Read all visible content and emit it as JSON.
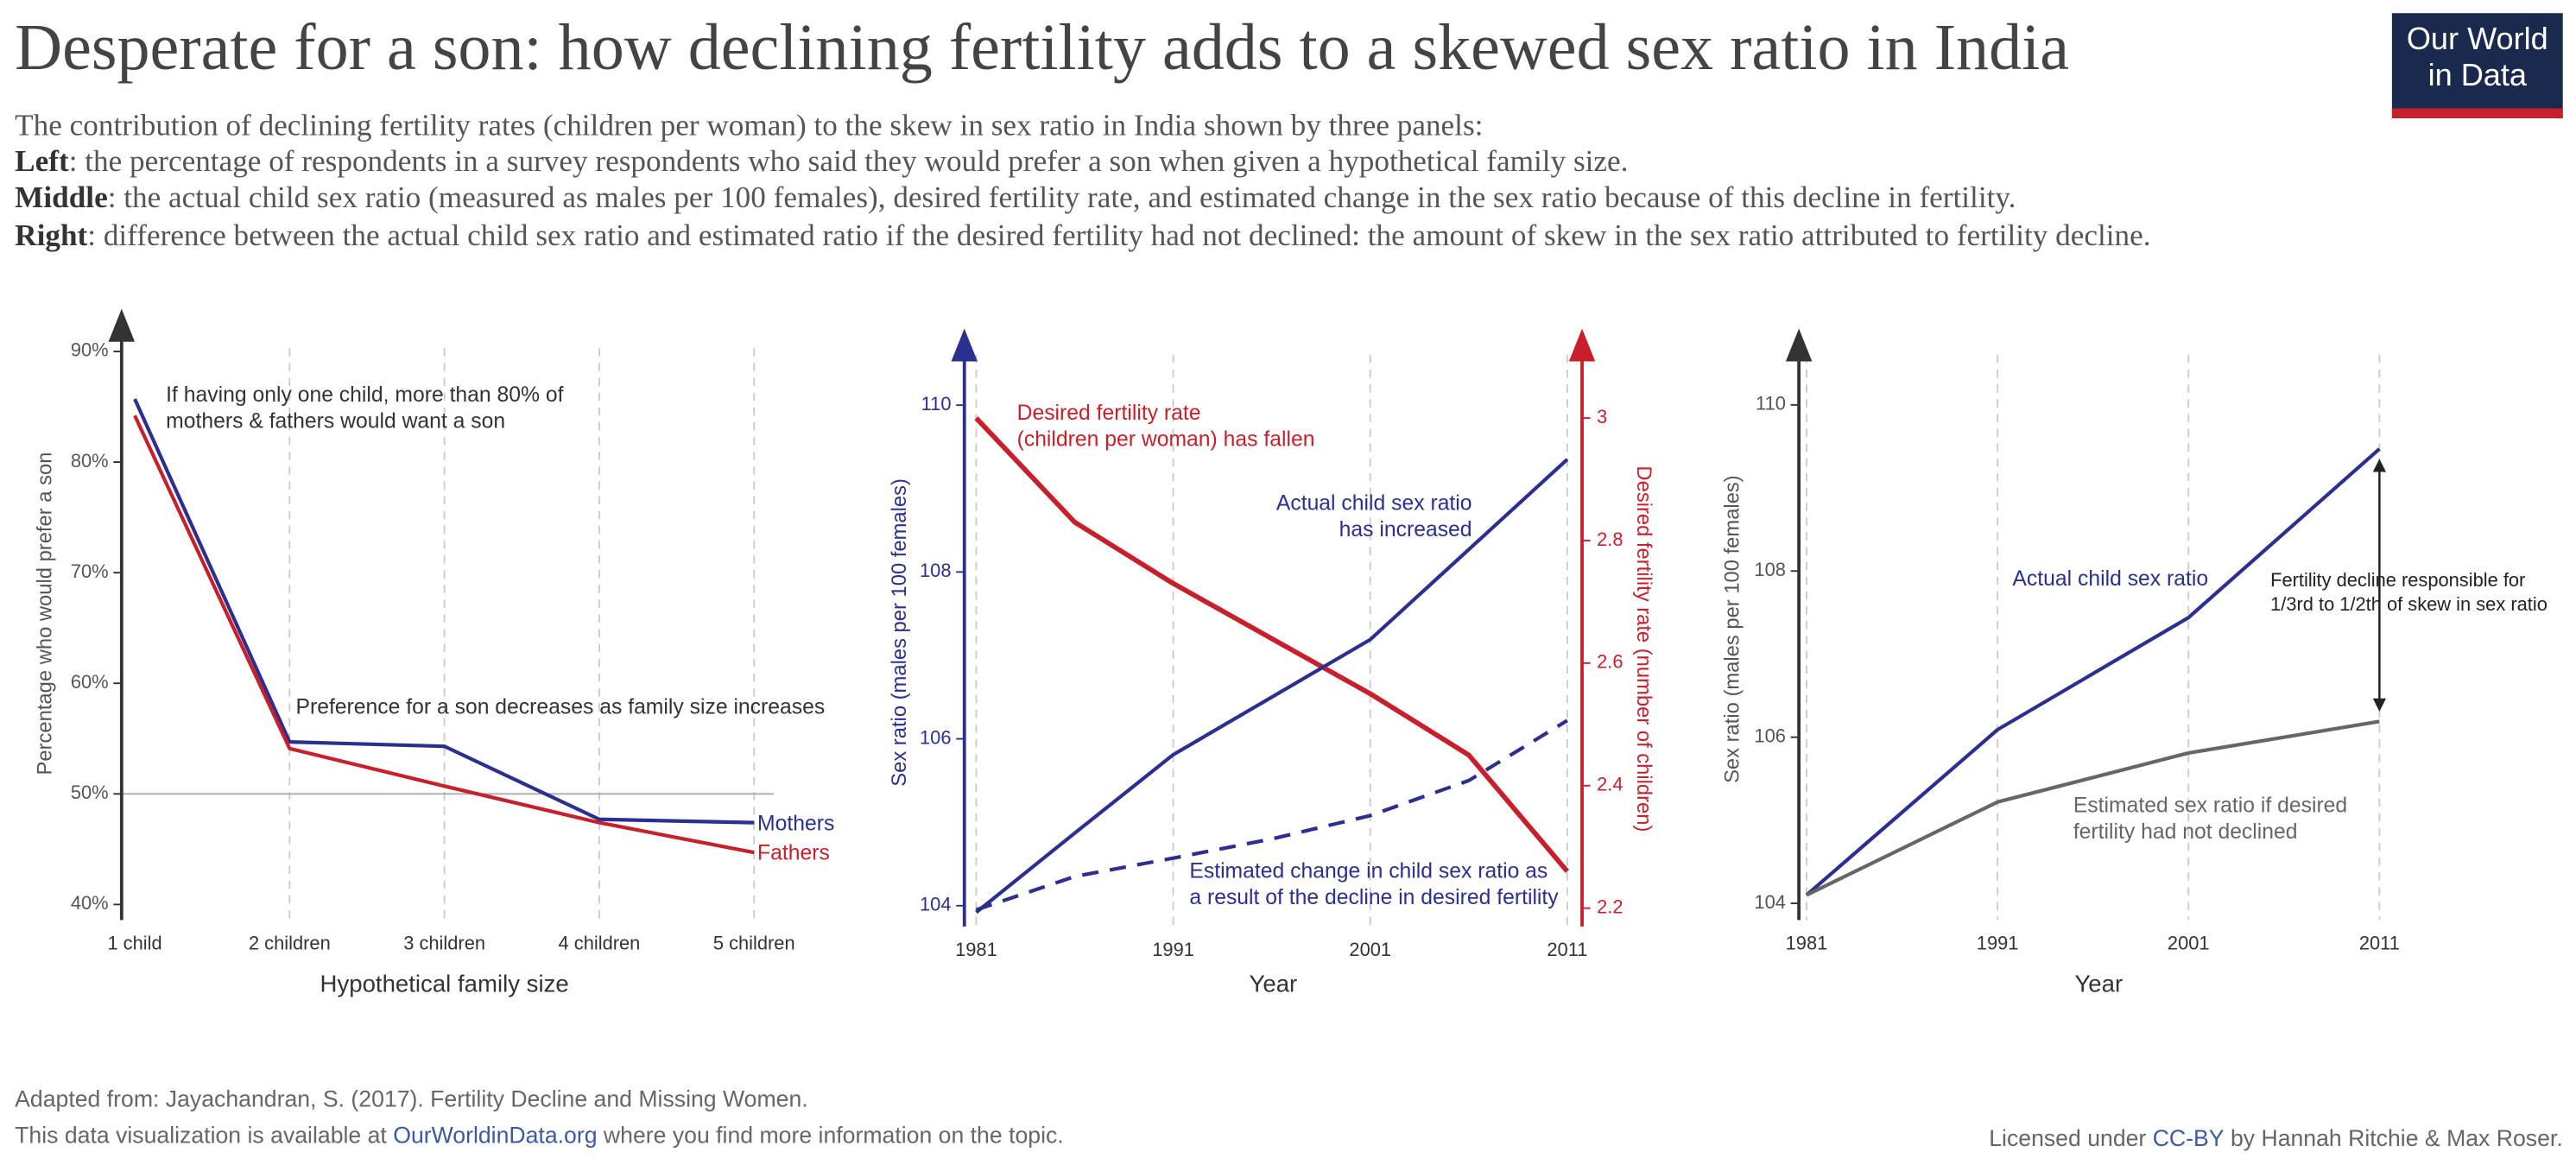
{
  "header": {
    "title": "Desperate for a son: how declining fertility adds to a skewed sex ratio in India",
    "subtitle": [
      {
        "text": "The contribution of declining fertility rates (children per woman) to the skew in sex ratio in India shown by three panels:"
      },
      {
        "label": "Left",
        "text": ": the percentage of respondents in a survey respondents who said they would prefer a son when given a hypothetical family size."
      },
      {
        "label": "Middle",
        "text": ": the actual child sex ratio (measured as males per 100 females), desired fertility rate, and estimated change in the sex ratio because of this decline in fertility."
      },
      {
        "label": "Right",
        "text": ": difference between the actual child sex ratio and estimated ratio if the desired fertility had not declined: the amount of skew in the sex ratio attributed to fertility decline."
      }
    ],
    "logo": [
      "Our World",
      "in Data"
    ]
  },
  "chart_data": [
    {
      "type": "line",
      "x_label": "Hypothetical family size",
      "y_label": "Percentage who would prefer a son",
      "categories": [
        "1 child",
        "2 children",
        "3 children",
        "4 children",
        "5 children"
      ],
      "series": [
        {
          "name": "Mothers",
          "color": "#2b2f8f",
          "values": [
            85.7,
            54.7,
            54.3,
            47.7,
            47.4
          ]
        },
        {
          "name": "Fathers",
          "color": "#c8202b",
          "values": [
            84.2,
            54.1,
            50.7,
            47.4,
            44.7
          ]
        }
      ],
      "ylim": [
        38.6,
        94
      ],
      "yticks": [
        {
          "value": 40,
          "label": "40%"
        },
        {
          "value": 50,
          "label": "50%"
        },
        {
          "value": 60,
          "label": "60%"
        },
        {
          "value": 70,
          "label": "70%"
        },
        {
          "value": 80,
          "label": "80%"
        },
        {
          "value": 90,
          "label": "90%"
        }
      ],
      "reference_line": 50,
      "y_axis_color": "#333333",
      "xgrid": true,
      "annotations": [
        {
          "text": [
            "If having only one child, more than 80% of",
            "mothers & fathers would want a son"
          ],
          "color": "#333333"
        },
        {
          "text": [
            "Preference for a son decreases as family size increases"
          ],
          "color": "#333333"
        }
      ]
    },
    {
      "type": "line",
      "x_label": "Year",
      "y_label": "Sex ratio (males per 100 females)",
      "y2_label": "Desired fertility rate (number of children)",
      "x": [
        1981,
        1986,
        1991,
        1996,
        2001,
        2006,
        2011
      ],
      "series": [
        {
          "name": [
            "Desired fertility rate",
            "(children per woman) has fallen"
          ],
          "color": "#c8202b",
          "axis": "y2",
          "values": [
            3.0,
            2.83,
            2.73,
            2.64,
            2.55,
            2.45,
            2.26
          ]
        },
        {
          "name": [
            "Actual child sex ratio",
            "has increased"
          ],
          "color": "#2b2f8f",
          "values": [
            103.92,
            104.87,
            105.81,
            106.5,
            107.19,
            108.27,
            109.35
          ]
        },
        {
          "name": [
            "Estimated change in child sex ratio as",
            "a result of the decline in desired fertility"
          ],
          "color": "#2b2f8f",
          "dashed": true,
          "values": [
            103.95,
            104.35,
            104.57,
            104.8,
            105.08,
            105.5,
            106.22
          ]
        }
      ],
      "xlim": [
        1980.4,
        2011.75
      ],
      "xticks": [
        1981,
        1991,
        2001,
        2011
      ],
      "ylim": [
        103.75,
        110.8
      ],
      "yticks": [
        104,
        106,
        108,
        110
      ],
      "y2lim": [
        2.17,
        3.13
      ],
      "y2ticks": [
        2.2,
        2.4,
        2.6,
        2.8,
        3
      ],
      "y_axis_color": "#2b2f8f",
      "y2_axis_color": "#c8202b",
      "xgrid": true,
      "annotations": []
    },
    {
      "type": "line",
      "x_label": "Year",
      "y_label": "Sex ratio (males per 100 females)",
      "x": [
        1981,
        1991,
        2001,
        2011
      ],
      "series": [
        {
          "name": "Actual child sex ratio",
          "color": "#2b2f8f",
          "values": [
            104.1,
            106.09,
            107.44,
            109.47
          ]
        },
        {
          "name": [
            "Estimated sex ratio if desired",
            "fertility had not declined"
          ],
          "color": "#666666",
          "values": [
            104.1,
            105.22,
            105.81,
            106.19
          ]
        }
      ],
      "xlim": [
        1980.6,
        2012
      ],
      "xticks": [
        1981,
        1991,
        2001,
        2011
      ],
      "ylim": [
        103.8,
        110.8
      ],
      "yticks": [
        104,
        106,
        108,
        110
      ],
      "y_axis_color": "#333333",
      "xgrid": true,
      "annotations": [
        {
          "text": [
            "Fertility decline responsible for",
            "1/3rd to 1/2th of skew in sex ratio"
          ],
          "color": "#222222"
        }
      ]
    }
  ],
  "footer": {
    "source": "Adapted from: Jayachandran, S. (2017). Fertility Decline and Missing Women.",
    "note_before": "This data visualization is available at ",
    "note_link": "OurWorldinData.org",
    "note_after": " where you find more information on the topic.",
    "license_before": "Licensed under ",
    "license_link": "CC-BY",
    "license_after": " by Hannah Ritchie & Max Roser."
  }
}
